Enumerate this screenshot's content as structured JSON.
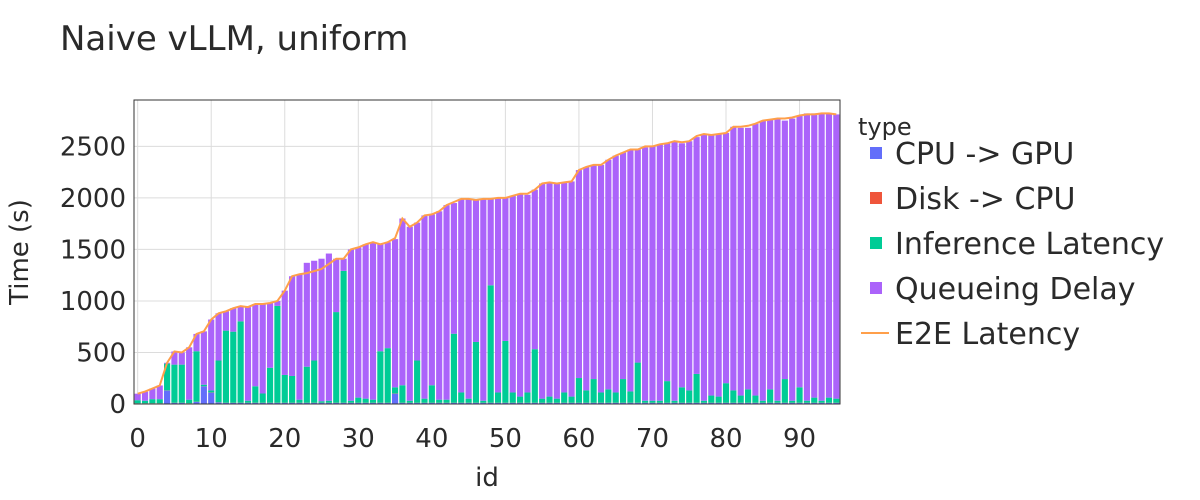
{
  "chart_data": {
    "type": "bar",
    "title": "Naive vLLM, uniform",
    "xlabel": "id",
    "ylabel": "Time (s)",
    "xlim": [
      -0.5,
      95.5
    ],
    "ylim": [
      0,
      2950
    ],
    "x_ticks": [
      0,
      10,
      20,
      30,
      40,
      50,
      60,
      70,
      80,
      90
    ],
    "y_ticks": [
      0,
      500,
      1000,
      1500,
      2000,
      2500
    ],
    "grid": true,
    "stacked": true,
    "legend_title": "type",
    "legend_position": "right",
    "ids": [
      0,
      1,
      2,
      3,
      4,
      5,
      6,
      7,
      8,
      9,
      10,
      11,
      12,
      13,
      14,
      15,
      16,
      17,
      18,
      19,
      20,
      21,
      22,
      23,
      24,
      25,
      26,
      27,
      28,
      29,
      30,
      31,
      32,
      33,
      34,
      35,
      36,
      37,
      38,
      39,
      40,
      41,
      42,
      43,
      44,
      45,
      46,
      47,
      48,
      49,
      50,
      51,
      52,
      53,
      54,
      55,
      56,
      57,
      58,
      59,
      60,
      61,
      62,
      63,
      64,
      65,
      66,
      67,
      68,
      69,
      70,
      71,
      72,
      73,
      74,
      75,
      76,
      77,
      78,
      79,
      80,
      81,
      82,
      83,
      84,
      85,
      86,
      87,
      88,
      89,
      90,
      91,
      92,
      93,
      94,
      95
    ],
    "series": [
      {
        "name": "CPU -> GPU",
        "color": "#636efa",
        "values": [
          5,
          5,
          5,
          5,
          130,
          10,
          10,
          5,
          20,
          170,
          110,
          15,
          10,
          10,
          10,
          10,
          10,
          10,
          10,
          10,
          10,
          10,
          10,
          10,
          10,
          10,
          10,
          10,
          10,
          10,
          10,
          10,
          10,
          10,
          10,
          100,
          10,
          10,
          10,
          10,
          10,
          10,
          10,
          10,
          10,
          10,
          10,
          10,
          10,
          10,
          10,
          10,
          10,
          10,
          10,
          10,
          10,
          10,
          10,
          10,
          10,
          10,
          10,
          10,
          10,
          10,
          10,
          10,
          10,
          10,
          10,
          10,
          10,
          10,
          10,
          10,
          10,
          10,
          10,
          10,
          10,
          10,
          10,
          10,
          10,
          10,
          10,
          10,
          10,
          10,
          10,
          10,
          10,
          10,
          10,
          10
        ]
      },
      {
        "name": "Disk -> CPU",
        "color": "#ef553b",
        "values": [
          2,
          2,
          2,
          2,
          2,
          2,
          2,
          2,
          2,
          2,
          2,
          2,
          2,
          2,
          2,
          2,
          2,
          2,
          2,
          2,
          2,
          2,
          2,
          2,
          2,
          2,
          2,
          2,
          2,
          2,
          2,
          2,
          2,
          2,
          2,
          2,
          2,
          2,
          2,
          2,
          2,
          2,
          2,
          2,
          2,
          2,
          2,
          2,
          2,
          2,
          2,
          2,
          2,
          2,
          2,
          2,
          2,
          2,
          2,
          2,
          2,
          2,
          2,
          2,
          2,
          2,
          2,
          2,
          2,
          2,
          2,
          2,
          2,
          2,
          2,
          2,
          2,
          2,
          2,
          2,
          2,
          2,
          2,
          2,
          2,
          2,
          2,
          2,
          2,
          2,
          2,
          2,
          2,
          2,
          2,
          2
        ]
      },
      {
        "name": "Inference Latency",
        "color": "#00cc96",
        "values": [
          30,
          25,
          40,
          40,
          260,
          370,
          370,
          35,
          490,
          15,
          20,
          405,
          700,
          690,
          790,
          20,
          160,
          90,
          340,
          940,
          270,
          260,
          30,
          350,
          410,
          15,
          20,
          880,
          1280,
          20,
          50,
          40,
          30,
          500,
          530,
          60,
          170,
          20,
          410,
          40,
          170,
          30,
          30,
          670,
          100,
          40,
          590,
          20,
          1140,
          100,
          600,
          100,
          60,
          100,
          520,
          40,
          60,
          40,
          100,
          60,
          240,
          120,
          230,
          100,
          130,
          100,
          230,
          110,
          390,
          20,
          20,
          20,
          210,
          20,
          150,
          120,
          280,
          20,
          70,
          60,
          190,
          120,
          70,
          130,
          70,
          20,
          130,
          20,
          230,
          20,
          150,
          20,
          50,
          20,
          50,
          40
        ]
      },
      {
        "name": "Queueing Delay",
        "color": "#ab63fa",
        "values": [
          63,
          88,
          103,
          133,
          8,
          128,
          118,
          508,
          168,
          518,
          688,
          458,
          188,
          228,
          148,
          908,
          798,
          868,
          628,
          48,
          818,
          968,
          1218,
          1008,
          968,
          1383,
          1428,
          518,
          118,
          1468,
          1458,
          1498,
          1528,
          1038,
          1028,
          1438,
          1618,
          1688,
          1338,
          1778,
          1658,
          1828,
          1888,
          1268,
          1878,
          1938,
          1378,
          1958,
          838,
          1888,
          1388,
          1908,
          1968,
          1918,
          1548,
          2088,
          2078,
          2088,
          2038,
          2088,
          2018,
          2168,
          2078,
          2208,
          2228,
          2298,
          2198,
          2348,
          2068,
          2458,
          2468,
          2488,
          2308,
          2518,
          2368,
          2418,
          2298,
          2588,
          2528,
          2548,
          2428,
          2558,
          2598,
          2538,
          2638,
          2718,
          2618,
          2738,
          2508,
          2738,
          2638,
          2788,
          2758,
          2788,
          2758,
          2758
        ]
      }
    ],
    "line_series": {
      "name": "E2E Latency",
      "color": "#ff9f4a",
      "values": [
        100,
        120,
        150,
        180,
        400,
        510,
        500,
        550,
        680,
        705,
        820,
        880,
        900,
        930,
        950,
        940,
        970,
        970,
        980,
        1000,
        1100,
        1240,
        1260,
        1270,
        1290,
        1310,
        1360,
        1410,
        1410,
        1500,
        1520,
        1550,
        1570,
        1550,
        1570,
        1610,
        1800,
        1720,
        1760,
        1830,
        1840,
        1870,
        1930,
        1960,
        1990,
        1990,
        1980,
        1990,
        1990,
        2000,
        2000,
        2020,
        2040,
        2040,
        2080,
        2140,
        2150,
        2140,
        2150,
        2160,
        2270,
        2300,
        2320,
        2320,
        2370,
        2410,
        2440,
        2470,
        2470,
        2500,
        2500,
        2520,
        2530,
        2550,
        2540,
        2550,
        2600,
        2620,
        2610,
        2620,
        2630,
        2690,
        2690,
        2700,
        2720,
        2750,
        2760,
        2770,
        2770,
        2780,
        2800,
        2810,
        2810,
        2820,
        2820,
        2810
      ]
    }
  }
}
